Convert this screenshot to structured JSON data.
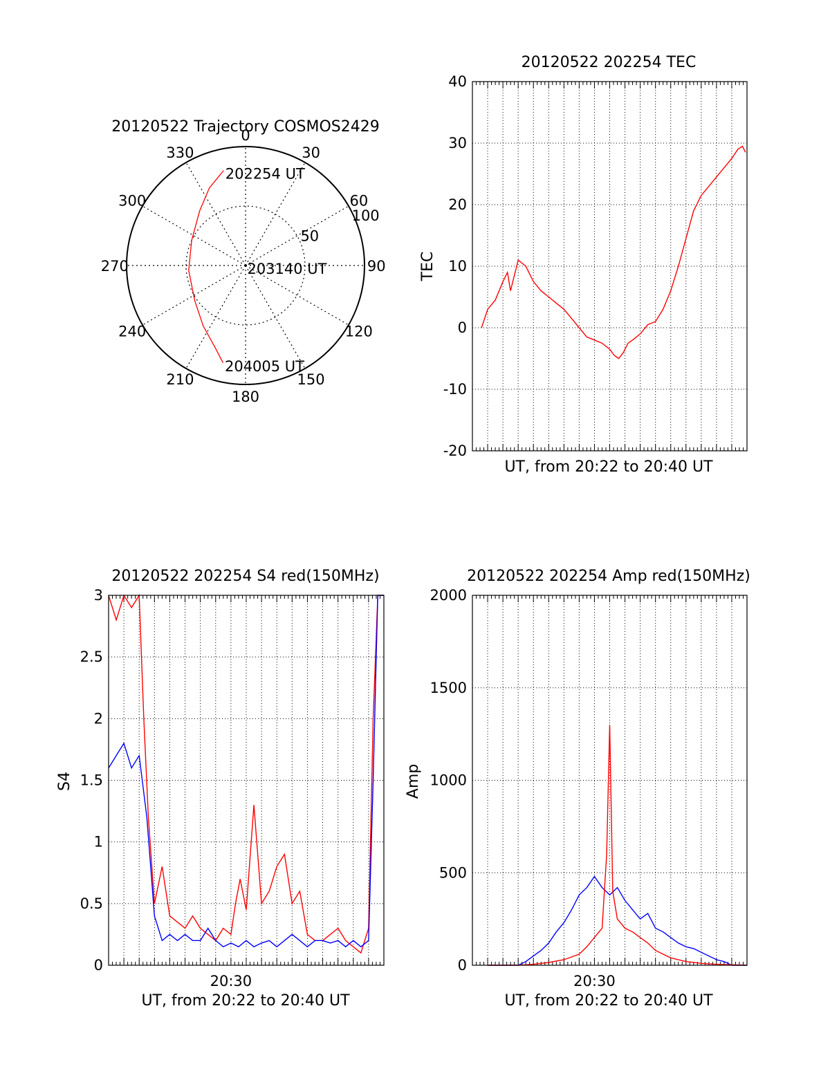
{
  "chart_data": [
    {
      "type": "polar",
      "title": "20120522 Trajectory COSMOS2429",
      "angle_labels": [
        "0",
        "30",
        "60",
        "90",
        "120",
        "150",
        "180",
        "210",
        "240",
        "270",
        "300",
        "330"
      ],
      "radius_labels": [
        "50",
        "100"
      ],
      "series": [
        {
          "color": "#ff0000",
          "points": [
            {
              "az": 347,
              "zen": 82
            },
            {
              "az": 335,
              "zen": 72
            },
            {
              "az": 320,
              "zen": 60
            },
            {
              "az": 295,
              "zen": 50
            },
            {
              "az": 265,
              "zen": 48
            },
            {
              "az": 235,
              "zen": 52
            },
            {
              "az": 215,
              "zen": 62
            },
            {
              "az": 200,
              "zen": 74
            },
            {
              "az": 193,
              "zen": 84
            }
          ]
        }
      ],
      "annotations": [
        {
          "text": "202254 UT",
          "az": 347,
          "zen": 82
        },
        {
          "text": "203140 UT",
          "az": 0,
          "zen": 0
        },
        {
          "text": "204005 UT",
          "az": 193,
          "zen": 84
        }
      ]
    },
    {
      "type": "line",
      "title": "20120522 202254 TEC",
      "xlabel": "UT, from 20:22 to 20:40 UT",
      "ylabel": "TEC",
      "xlim": [
        0,
        18
      ],
      "ylim": [
        -20,
        40
      ],
      "yticks": [
        "-20",
        "-10",
        "0",
        "10",
        "20",
        "30",
        "40"
      ],
      "series": [
        {
          "color": "#ff0000",
          "x": [
            0.6,
            1.0,
            1.5,
            2.0,
            2.3,
            2.5,
            3.0,
            3.5,
            4.0,
            4.5,
            5.0,
            5.5,
            6.0,
            6.5,
            7.0,
            7.5,
            8.0,
            8.5,
            9.0,
            9.3,
            9.6,
            9.9,
            10.2,
            10.5,
            11.0,
            11.5,
            12.0,
            12.5,
            13.0,
            13.5,
            14.0,
            14.5,
            15.0,
            15.5,
            16.0,
            16.5,
            17.0,
            17.4,
            17.7,
            17.9
          ],
          "y": [
            0.0,
            3.0,
            4.5,
            7.5,
            9.0,
            6.0,
            11.0,
            10.0,
            7.5,
            6.0,
            5.0,
            4.0,
            3.0,
            1.5,
            0.0,
            -1.5,
            -2.0,
            -2.5,
            -3.5,
            -4.5,
            -5.0,
            -4.0,
            -2.5,
            -2.0,
            -1.0,
            0.5,
            1.0,
            3.0,
            6.0,
            10.0,
            14.5,
            19.0,
            21.5,
            23.0,
            24.5,
            26.0,
            27.5,
            29.0,
            29.5,
            28.5
          ]
        }
      ]
    },
    {
      "type": "line",
      "title": "20120522 202254 S4 red(150MHz)",
      "xlabel": "UT, from 20:22 to 20:40 UT",
      "ylabel": "S4",
      "xlim": [
        0,
        18
      ],
      "ylim": [
        0,
        3
      ],
      "yticks": [
        "0",
        "0.5",
        "1",
        "1.5",
        "2",
        "2.5",
        "3"
      ],
      "xticks": [
        {
          "x": 8,
          "label": "20:30"
        }
      ],
      "series": [
        {
          "color": "#ff0000",
          "x": [
            0.0,
            0.5,
            1.0,
            1.5,
            2.0,
            2.3,
            2.6,
            3.0,
            3.5,
            4.0,
            4.5,
            5.0,
            5.5,
            6.0,
            6.5,
            7.0,
            7.5,
            8.0,
            8.3,
            8.6,
            9.0,
            9.5,
            10.0,
            10.5,
            11.0,
            11.5,
            12.0,
            12.5,
            13.0,
            13.5,
            14.0,
            14.5,
            15.0,
            15.5,
            16.0,
            16.5,
            17.0,
            17.3,
            17.6,
            18.0
          ],
          "y": [
            3.0,
            2.8,
            3.0,
            2.9,
            3.0,
            2.0,
            1.2,
            0.5,
            0.8,
            0.4,
            0.35,
            0.3,
            0.4,
            0.3,
            0.25,
            0.2,
            0.3,
            0.25,
            0.5,
            0.7,
            0.45,
            1.3,
            0.5,
            0.6,
            0.8,
            0.9,
            0.5,
            0.6,
            0.25,
            0.2,
            0.2,
            0.25,
            0.3,
            0.2,
            0.15,
            0.1,
            0.3,
            2.0,
            3.0,
            3.0
          ]
        },
        {
          "color": "#0000ff",
          "x": [
            0.0,
            0.5,
            1.0,
            1.5,
            2.0,
            2.5,
            3.0,
            3.5,
            4.0,
            4.5,
            5.0,
            5.5,
            6.0,
            6.5,
            7.0,
            7.5,
            8.0,
            8.5,
            9.0,
            9.5,
            10.0,
            10.5,
            11.0,
            11.5,
            12.0,
            12.5,
            13.0,
            13.5,
            14.0,
            14.5,
            15.0,
            15.5,
            16.0,
            16.5,
            17.0,
            17.3,
            17.6,
            18.0
          ],
          "y": [
            1.6,
            1.7,
            1.8,
            1.6,
            1.7,
            1.2,
            0.4,
            0.2,
            0.25,
            0.2,
            0.25,
            0.2,
            0.2,
            0.3,
            0.2,
            0.15,
            0.18,
            0.15,
            0.2,
            0.15,
            0.18,
            0.2,
            0.15,
            0.2,
            0.25,
            0.2,
            0.15,
            0.2,
            0.2,
            0.18,
            0.2,
            0.15,
            0.2,
            0.15,
            0.2,
            1.5,
            3.0,
            3.0
          ]
        }
      ]
    },
    {
      "type": "line",
      "title": "20120522 202254 Amp red(150MHz)",
      "xlabel": "UT, from 20:22 to 20:40 UT",
      "ylabel": "Amp",
      "xlim": [
        0,
        18
      ],
      "ylim": [
        0,
        2000
      ],
      "yticks": [
        "0",
        "500",
        "1000",
        "1500",
        "2000"
      ],
      "xticks": [
        {
          "x": 8,
          "label": "20:30"
        }
      ],
      "series": [
        {
          "color": "#0000ff",
          "x": [
            1.0,
            2.0,
            3.0,
            3.5,
            4.0,
            4.5,
            5.0,
            5.5,
            6.0,
            6.5,
            7.0,
            7.5,
            8.0,
            8.5,
            9.0,
            9.5,
            10.0,
            10.5,
            11.0,
            11.5,
            12.0,
            12.5,
            13.0,
            13.5,
            14.0,
            14.5,
            15.0,
            15.5,
            16.0,
            16.5,
            17.0,
            18.0
          ],
          "y": [
            0,
            0,
            0,
            20,
            50,
            80,
            120,
            180,
            230,
            300,
            380,
            420,
            480,
            420,
            380,
            420,
            350,
            300,
            250,
            280,
            200,
            180,
            150,
            120,
            100,
            90,
            70,
            50,
            30,
            20,
            0,
            0
          ]
        },
        {
          "color": "#ff0000",
          "x": [
            1.0,
            3.0,
            4.0,
            5.0,
            6.0,
            7.0,
            7.5,
            8.0,
            8.5,
            8.8,
            9.0,
            9.2,
            9.5,
            10.0,
            10.5,
            11.0,
            11.5,
            12.0,
            12.5,
            13.0,
            14.0,
            15.0,
            16.0,
            18.0
          ],
          "y": [
            0,
            0,
            5,
            15,
            30,
            60,
            100,
            150,
            200,
            600,
            1300,
            400,
            250,
            200,
            180,
            150,
            120,
            80,
            60,
            40,
            20,
            10,
            5,
            0
          ]
        }
      ]
    }
  ]
}
